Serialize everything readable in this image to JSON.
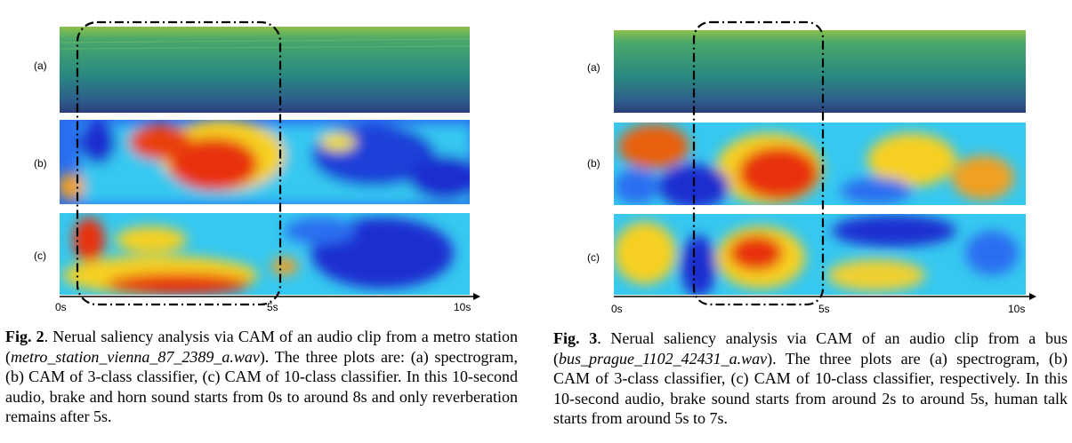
{
  "figures": [
    {
      "id": "fig2",
      "panel_labels": [
        "(a)",
        "(b)",
        "(c)"
      ],
      "axis": {
        "start": "0s",
        "mid": "5s",
        "end": "10s"
      },
      "caption": {
        "label": "Fig. 2",
        "intro": ". Nerual saliency analysis via CAM of an audio clip from a metro station (",
        "filename": "metro_station_vienna_87_2389_a.wav",
        "body": "). The three plots are: (a) spectrogram, (b) CAM of 3-class classifier, (c) CAM of 10-class classifier. In this 10-second audio, brake and horn sound starts from 0s to around 8s and only reverberation remains after 5s."
      }
    },
    {
      "id": "fig3",
      "panel_labels": [
        "(a)",
        "(b)",
        "(c)"
      ],
      "axis": {
        "start": "0s",
        "mid": "5s",
        "end": "10s"
      },
      "caption": {
        "label": "Fig. 3",
        "intro": ". Nerual saliency analysis via CAM of an audio clip from a bus (",
        "filename": "bus_prague_1102_42431_a.wav",
        "body": "). The three plots are (a) spectrogram, (b) CAM of 3-class classifier, (c) CAM of 10-class classifier, respectively. In this 10-second audio, brake sound starts from around 2s to around 5s, human talk starts from around 5s to 7s."
      }
    }
  ],
  "colors": {
    "spec_top": "#7fb848",
    "spec_mid": "#2a8a80",
    "spec_bottom": "#2b3f7a",
    "cam_low": "#1a2fd0",
    "cam_mid": "#33d0e8",
    "cam_high": "#e01808",
    "hot": "#f8e020"
  }
}
